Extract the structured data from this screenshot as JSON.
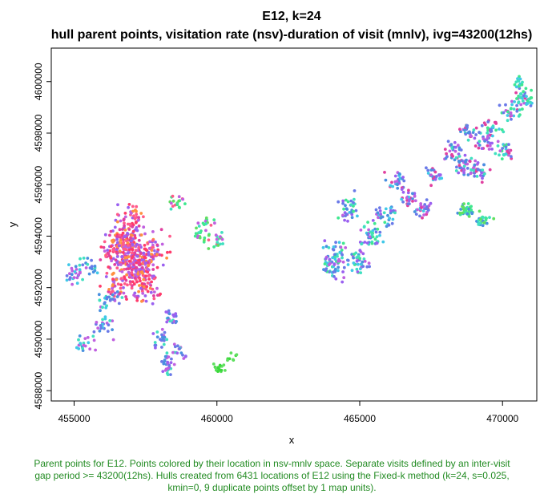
{
  "chart_data": {
    "type": "scatter",
    "title": "E12, k=24",
    "subtitle": "hull parent points, visitation rate (nsv)-duration of visit (mnlv), ivg=43200(12hs)",
    "xlabel": "x",
    "ylabel": "y",
    "xlim": [
      454200,
      471200
    ],
    "ylim": [
      4587600,
      4601300
    ],
    "x_ticks": [
      455000,
      460000,
      465000,
      470000
    ],
    "y_ticks": [
      4588000,
      4590000,
      4592000,
      4594000,
      4596000,
      4598000,
      4600000
    ],
    "x_tick_labels": [
      "455000",
      "460000",
      "465000",
      "470000"
    ],
    "y_tick_labels": [
      "4588000",
      "4590000",
      "4592000",
      "4594000",
      "4596000",
      "4598000",
      "4600000"
    ],
    "grid": false,
    "legend": "none",
    "point_colors": [
      "#ff3b6b",
      "#ff5a8a",
      "#e040a0",
      "#c060e0",
      "#9a60f0",
      "#6a7ae8",
      "#4a90e0",
      "#40c8e8",
      "#40e0c0",
      "#40e890",
      "#60e060",
      "#3ad83a",
      "#ff9040",
      "#e8c040"
    ],
    "clusters": [
      {
        "x": [
          456400,
          456700,
          457000,
          457300,
          457600,
          457900,
          456800,
          457200,
          456500,
          457500,
          457000,
          456900,
          457400,
          456600,
          457100
        ],
        "y": [
          4593300,
          4593000,
          4593500,
          4592800,
          4593200,
          4593600,
          4594200,
          4592500,
          4592100,
          4591800,
          4594700,
          4593900,
          4592300,
          4593700,
          4593100
        ],
        "spread": [
          700,
          750
        ],
        "count": 560,
        "palette": [
          0,
          1,
          2,
          3,
          12,
          4
        ]
      },
      {
        "x": [
          455000,
          455600,
          456200,
          456000,
          455300
        ],
        "y": [
          4592500,
          4592800,
          4591500,
          4590500,
          4589800
        ],
        "spread": [
          600,
          650
        ],
        "count": 110,
        "palette": [
          5,
          6,
          7,
          8,
          3
        ]
      },
      {
        "x": [
          458000,
          458400,
          458700,
          458300
        ],
        "y": [
          4590000,
          4590800,
          4589600,
          4589000
        ],
        "spread": [
          400,
          500
        ],
        "count": 90,
        "palette": [
          5,
          6,
          4,
          3,
          8
        ]
      },
      {
        "x": [
          458600,
          459600,
          460100,
          459500
        ],
        "y": [
          4595300,
          4594500,
          4593800,
          4594000
        ],
        "spread": [
          450,
          450
        ],
        "count": 70,
        "palette": [
          9,
          10,
          8,
          3,
          1
        ]
      },
      {
        "x": [
          460100,
          460500
        ],
        "y": [
          4588900,
          4589300
        ],
        "spread": [
          300,
          300
        ],
        "count": 25,
        "palette": [
          11,
          10
        ]
      },
      {
        "x": [
          464200,
          464900,
          465400,
          464600,
          465900,
          464100
        ],
        "y": [
          4593400,
          4593000,
          4594000,
          4595100,
          4594800,
          4592800
        ],
        "spread": [
          600,
          700
        ],
        "count": 220,
        "palette": [
          7,
          8,
          6,
          5,
          4,
          3,
          9
        ]
      },
      {
        "x": [
          466700,
          467200,
          466300,
          467600
        ],
        "y": [
          4595500,
          4595000,
          4596200,
          4596400
        ],
        "spread": [
          500,
          500
        ],
        "count": 110,
        "palette": [
          6,
          5,
          4,
          3,
          2,
          7
        ]
      },
      {
        "x": [
          468200,
          468700,
          469100,
          468900,
          469400
        ],
        "y": [
          4597300,
          4596800,
          4596500,
          4598100,
          4597700
        ],
        "spread": [
          550,
          550
        ],
        "count": 150,
        "palette": [
          5,
          6,
          4,
          3,
          2,
          8
        ]
      },
      {
        "x": [
          468700,
          469300
        ],
        "y": [
          4595000,
          4594600
        ],
        "spread": [
          450,
          400
        ],
        "count": 60,
        "palette": [
          9,
          10,
          8,
          6
        ]
      },
      {
        "x": [
          469600,
          470300,
          470700,
          470100
        ],
        "y": [
          4598200,
          4598800,
          4599400,
          4597300
        ],
        "spread": [
          500,
          550
        ],
        "count": 110,
        "palette": [
          8,
          9,
          5,
          3,
          2,
          7
        ]
      },
      {
        "x": [
          470600,
          470900
        ],
        "y": [
          4600000,
          4599200
        ],
        "spread": [
          250,
          350
        ],
        "count": 25,
        "palette": [
          8,
          9,
          7
        ]
      }
    ]
  },
  "caption": {
    "line1": "Parent points for E12. Points colored by their location in nsv-mnlv space. Separate visits defined by an inter-visit",
    "line2": "gap period >= 43200(12hs). Hulls created from 6431 locations of E12 using the Fixed-k method (k=24, s=0.025,",
    "line3": "kmin=0, 9 duplicate points offset by 1 map units)."
  }
}
